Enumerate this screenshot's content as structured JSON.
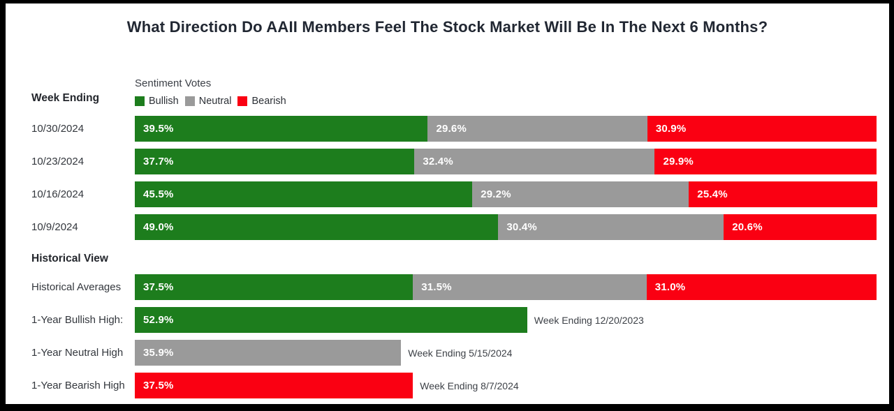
{
  "title": "What Direction Do AAII Members Feel The Stock Market Will Be In The Next 6 Months?",
  "colors": {
    "bullish": "#1d7d1d",
    "neutral": "#9a9a9a",
    "bearish": "#fa0012",
    "frame": "#000000",
    "background": "#ffffff",
    "title_text": "#212732"
  },
  "legend": {
    "title": "Sentiment Votes",
    "items": [
      {
        "label": "Bullish",
        "sentiment": "bullish"
      },
      {
        "label": "Neutral",
        "sentiment": "neutral"
      },
      {
        "label": "Bearish",
        "sentiment": "bearish"
      }
    ]
  },
  "week_section": {
    "heading": "Week Ending",
    "rows": [
      {
        "label": "10/30/2024",
        "segments": [
          {
            "text": "39.5%",
            "pct": 39.5,
            "sentiment": "bullish"
          },
          {
            "text": "29.6%",
            "pct": 29.6,
            "sentiment": "neutral"
          },
          {
            "text": "30.9%",
            "pct": 30.9,
            "sentiment": "bearish"
          }
        ]
      },
      {
        "label": "10/23/2024",
        "segments": [
          {
            "text": "37.7%",
            "pct": 37.7,
            "sentiment": "bullish"
          },
          {
            "text": "32.4%",
            "pct": 32.4,
            "sentiment": "neutral"
          },
          {
            "text": "29.9%",
            "pct": 29.9,
            "sentiment": "bearish"
          }
        ]
      },
      {
        "label": "10/16/2024",
        "segments": [
          {
            "text": "45.5%",
            "pct": 45.5,
            "sentiment": "bullish"
          },
          {
            "text": "29.2%",
            "pct": 29.2,
            "sentiment": "neutral"
          },
          {
            "text": "25.4%",
            "pct": 25.4,
            "sentiment": "bearish"
          }
        ]
      },
      {
        "label": "10/9/2024",
        "segments": [
          {
            "text": "49.0%",
            "pct": 49.0,
            "sentiment": "bullish"
          },
          {
            "text": "30.4%",
            "pct": 30.4,
            "sentiment": "neutral"
          },
          {
            "text": "20.6%",
            "pct": 20.6,
            "sentiment": "bearish"
          }
        ]
      }
    ]
  },
  "historical_section": {
    "heading": "Historical View",
    "rows": [
      {
        "label": "Historical Averages",
        "segments": [
          {
            "text": "37.5%",
            "pct": 37.5,
            "sentiment": "bullish"
          },
          {
            "text": "31.5%",
            "pct": 31.5,
            "sentiment": "neutral"
          },
          {
            "text": "31.0%",
            "pct": 31.0,
            "sentiment": "bearish"
          }
        ]
      },
      {
        "label": "1-Year Bullish High:",
        "segments": [
          {
            "text": "52.9%",
            "pct": 52.9,
            "sentiment": "bullish"
          }
        ],
        "annotation": "Week Ending 12/20/2023"
      },
      {
        "label": "1-Year Neutral High",
        "segments": [
          {
            "text": "35.9%",
            "pct": 35.9,
            "sentiment": "neutral"
          }
        ],
        "annotation": "Week Ending 5/15/2024"
      },
      {
        "label": "1-Year Bearish High",
        "segments": [
          {
            "text": "37.5%",
            "pct": 37.5,
            "sentiment": "bearish"
          }
        ],
        "annotation": "Week Ending 8/7/2024"
      }
    ]
  },
  "chart_data": {
    "type": "bar",
    "variant": "horizontal_stacked_100pct",
    "title": "What Direction Do AAII Members Feel The Stock Market Will Be In The Next 6 Months?",
    "legend_title": "Sentiment Votes",
    "legend_position": "top-left",
    "unit": "%",
    "xlim": [
      0,
      100
    ],
    "categories": [
      "10/30/2024",
      "10/23/2024",
      "10/16/2024",
      "10/9/2024",
      "Historical Averages"
    ],
    "series": [
      {
        "name": "Bullish",
        "color": "#1d7d1d",
        "values": [
          39.5,
          37.7,
          45.5,
          49.0,
          37.5
        ]
      },
      {
        "name": "Neutral",
        "color": "#9a9a9a",
        "values": [
          29.6,
          32.4,
          29.2,
          30.4,
          31.5
        ]
      },
      {
        "name": "Bearish",
        "color": "#fa0012",
        "values": [
          30.9,
          29.9,
          25.4,
          20.6,
          31.0
        ]
      }
    ],
    "extremes": [
      {
        "label": "1-Year Bullish High:",
        "series": "Bullish",
        "value": 52.9,
        "annotation": "Week Ending 12/20/2023"
      },
      {
        "label": "1-Year Neutral High",
        "series": "Neutral",
        "value": 35.9,
        "annotation": "Week Ending 5/15/2024"
      },
      {
        "label": "1-Year Bearish High",
        "series": "Bearish",
        "value": 37.5,
        "annotation": "Week Ending 8/7/2024"
      }
    ]
  }
}
